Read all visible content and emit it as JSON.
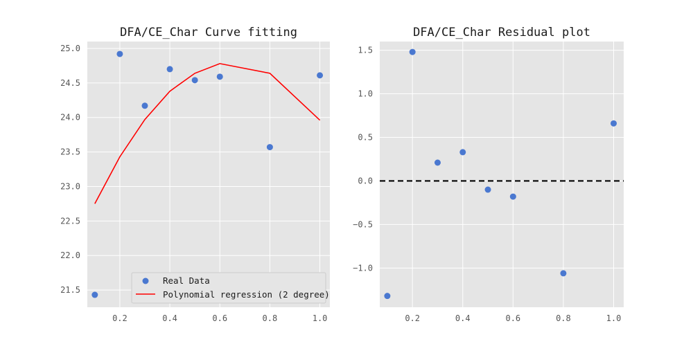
{
  "chart_data": [
    {
      "type": "scatter",
      "title": "DFA/CE_Char Curve fitting",
      "xlabel": "",
      "ylabel": "",
      "xlim": [
        0.07,
        1.04
      ],
      "ylim": [
        21.25,
        25.1
      ],
      "x_ticks": [
        0.2,
        0.4,
        0.6,
        0.8,
        1.0
      ],
      "x_tick_labels": [
        "0.2",
        "0.4",
        "0.6",
        "0.8",
        "1.0"
      ],
      "y_ticks": [
        21.5,
        22.0,
        22.5,
        23.0,
        23.5,
        24.0,
        24.5,
        25.0
      ],
      "y_tick_labels": [
        "21.5",
        "22.0",
        "22.5",
        "23.0",
        "23.5",
        "24.0",
        "24.5",
        "25.0"
      ],
      "grid": true,
      "legend": "lower-right",
      "series": [
        {
          "name": "Real Data",
          "kind": "scatter",
          "color": "#4a78d0",
          "x": [
            0.1,
            0.2,
            0.3,
            0.4,
            0.5,
            0.6,
            0.8,
            1.0
          ],
          "y": [
            21.43,
            24.92,
            24.17,
            24.7,
            24.54,
            24.59,
            23.57,
            24.61
          ]
        },
        {
          "name": "Polynomial regression (2 degree)",
          "kind": "line",
          "color": "#ff0000",
          "x": [
            0.1,
            0.2,
            0.3,
            0.4,
            0.5,
            0.6,
            0.8,
            1.0
          ],
          "y": [
            22.75,
            23.43,
            23.97,
            24.38,
            24.64,
            24.78,
            24.64,
            23.96
          ]
        }
      ]
    },
    {
      "type": "scatter",
      "title": "DFA/CE_Char Residual plot",
      "xlabel": "",
      "ylabel": "",
      "xlim": [
        0.07,
        1.04
      ],
      "ylim": [
        -1.45,
        1.6
      ],
      "x_ticks": [
        0.2,
        0.4,
        0.6,
        0.8,
        1.0
      ],
      "x_tick_labels": [
        "0.2",
        "0.4",
        "0.6",
        "0.8",
        "1.0"
      ],
      "y_ticks": [
        -1.0,
        -0.5,
        0.0,
        0.5,
        1.0,
        1.5
      ],
      "y_tick_labels": [
        "−1.0",
        "−0.5",
        "0.0",
        "0.5",
        "1.0",
        "1.5"
      ],
      "grid": true,
      "reference_line": {
        "y": 0,
        "style": "dashed",
        "color": "#000000"
      },
      "series": [
        {
          "kind": "scatter",
          "color": "#4a78d0",
          "x": [
            0.1,
            0.2,
            0.3,
            0.4,
            0.5,
            0.6,
            0.8,
            1.0
          ],
          "y": [
            -1.32,
            1.48,
            0.21,
            0.33,
            -0.1,
            -0.18,
            -1.06,
            0.66
          ]
        }
      ]
    }
  ],
  "colors": {
    "axes_background": "#e5e5e5",
    "grid": "#ffffff",
    "tick_text": "#555555",
    "title_text": "#1a1a1a"
  }
}
